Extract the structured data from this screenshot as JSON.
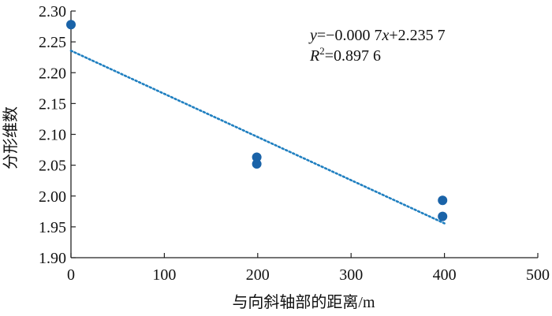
{
  "chart_data": {
    "type": "scatter",
    "title": "",
    "xlabel": "与向斜轴部的距离/m",
    "ylabel": "分形维数",
    "xlim": [
      0,
      500
    ],
    "ylim": [
      1.9,
      2.3
    ],
    "x_ticks": [
      "0",
      "100",
      "200",
      "300",
      "400",
      "500"
    ],
    "y_ticks": [
      "1.90",
      "1.95",
      "2.00",
      "2.05",
      "2.10",
      "2.15",
      "2.20",
      "2.25",
      "2.30"
    ],
    "points": [
      {
        "x": 0,
        "y": 2.278
      },
      {
        "x": 199,
        "y": 2.063
      },
      {
        "x": 199,
        "y": 2.052
      },
      {
        "x": 398,
        "y": 1.993
      },
      {
        "x": 398,
        "y": 1.967
      }
    ],
    "trendline": {
      "type": "linear",
      "x_range": [
        0,
        400
      ],
      "slope": -0.0007,
      "intercept": 2.2357,
      "style": "dotted"
    },
    "annotation": {
      "equation_y": "y",
      "equation_rest": "=−0.000 7",
      "equation_x": "x",
      "equation_tail": "+2.235 7",
      "r2_label": "R",
      "r2_sup": "2",
      "r2_value": "=0.897 6"
    },
    "colors": {
      "point": "#1a63a8",
      "trendline": "#1f7fc0",
      "axis": "#222222"
    },
    "grid": false,
    "legend": "none"
  }
}
